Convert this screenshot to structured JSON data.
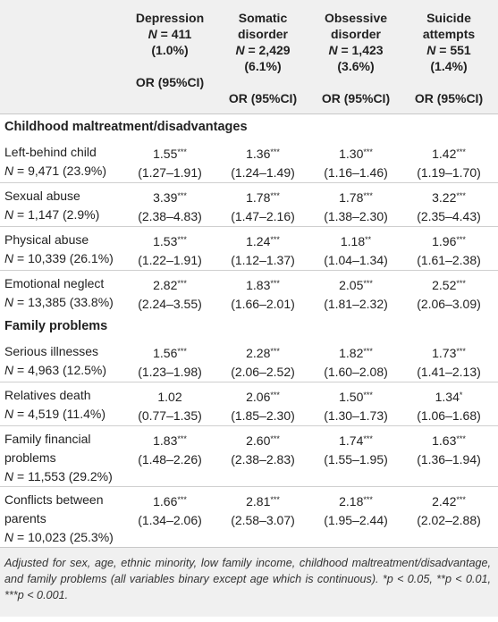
{
  "columns": [
    {
      "name": [
        "Depression"
      ],
      "n": "N = 411",
      "pct": "(1.0%)",
      "or": "OR (95%CI)"
    },
    {
      "name": [
        "Somatic",
        "disorder"
      ],
      "n": "N = 2,429",
      "pct": "(6.1%)",
      "or": "OR (95%CI)"
    },
    {
      "name": [
        "Obsessive",
        "disorder"
      ],
      "n": "N = 1,423",
      "pct": "(3.6%)",
      "or": "OR (95%CI)"
    },
    {
      "name": [
        "Suicide",
        "attempts"
      ],
      "n": "N = 551",
      "pct": "(1.4%)",
      "or": "OR (95%CI)"
    }
  ],
  "sections": [
    {
      "title": "Childhood maltreatment/disadvantages",
      "rows": [
        {
          "label": [
            "Left-behind child"
          ],
          "n": "N = 9,471 (23.9%)",
          "cells": [
            [
              "1.55",
              "***",
              "(1.27–1.91)"
            ],
            [
              "1.36",
              "***",
              "(1.24–1.49)"
            ],
            [
              "1.30",
              "***",
              "(1.16–1.46)"
            ],
            [
              "1.42",
              "***",
              "(1.19–1.70)"
            ]
          ]
        },
        {
          "label": [
            "Sexual abuse"
          ],
          "n": "N = 1,147 (2.9%)",
          "cells": [
            [
              "3.39",
              "***",
              "(2.38–4.83)"
            ],
            [
              "1.78",
              "***",
              "(1.47–2.16)"
            ],
            [
              "1.78",
              "***",
              "(1.38–2.30)"
            ],
            [
              "3.22",
              "***",
              "(2.35–4.43)"
            ]
          ]
        },
        {
          "label": [
            "Physical abuse"
          ],
          "n": "N = 10,339 (26.1%)",
          "cells": [
            [
              "1.53",
              "***",
              "(1.22–1.91)"
            ],
            [
              "1.24",
              "***",
              "(1.12–1.37)"
            ],
            [
              "1.18",
              "**",
              "(1.04–1.34)"
            ],
            [
              "1.96",
              "***",
              "(1.61–2.38)"
            ]
          ]
        },
        {
          "label": [
            "Emotional neglect"
          ],
          "n": "N = 13,385 (33.8%)",
          "cells": [
            [
              "2.82",
              "***",
              "(2.24–3.55)"
            ],
            [
              "1.83",
              "***",
              "(1.66–2.01)"
            ],
            [
              "2.05",
              "***",
              "(1.81–2.32)"
            ],
            [
              "2.52",
              "***",
              "(2.06–3.09)"
            ]
          ]
        }
      ]
    },
    {
      "title": "Family problems",
      "rows": [
        {
          "label": [
            "Serious illnesses"
          ],
          "n": "N = 4,963 (12.5%)",
          "cells": [
            [
              "1.56",
              "***",
              "(1.23–1.98)"
            ],
            [
              "2.28",
              "***",
              "(2.06–2.52)"
            ],
            [
              "1.82",
              "***",
              "(1.60–2.08)"
            ],
            [
              "1.73",
              "***",
              "(1.41–2.13)"
            ]
          ]
        },
        {
          "label": [
            "Relatives death"
          ],
          "n": "N = 4,519 (11.4%)",
          "cells": [
            [
              "1.02",
              "",
              "(0.77–1.35)"
            ],
            [
              "2.06",
              "***",
              "(1.85–2.30)"
            ],
            [
              "1.50",
              "***",
              "(1.30–1.73)"
            ],
            [
              "1.34",
              "*",
              "(1.06–1.68)"
            ]
          ]
        },
        {
          "label": [
            "Family financial",
            "problems"
          ],
          "n": "N = 11,553 (29.2%)",
          "cells": [
            [
              "1.83",
              "***",
              "(1.48–2.26)"
            ],
            [
              "2.60",
              "***",
              "(2.38–2.83)"
            ],
            [
              "1.74",
              "***",
              "(1.55–1.95)"
            ],
            [
              "1.63",
              "***",
              "(1.36–1.94)"
            ]
          ]
        },
        {
          "label": [
            "Conflicts between",
            "parents"
          ],
          "n": "N = 10,023 (25.3%)",
          "cells": [
            [
              "1.66",
              "***",
              "(1.34–2.06)"
            ],
            [
              "2.81",
              "***",
              "(2.58–3.07)"
            ],
            [
              "2.18",
              "***",
              "(1.95–2.44)"
            ],
            [
              "2.42",
              "***",
              "(2.02–2.88)"
            ]
          ]
        }
      ]
    }
  ],
  "footnote": "Adjusted for sex, age, ethnic minority, low family income, childhood maltreatment/disadvantage, and family problems (all variables binary except age which is continuous). *p < 0.05, **p < 0.01, ***p < 0.001."
}
